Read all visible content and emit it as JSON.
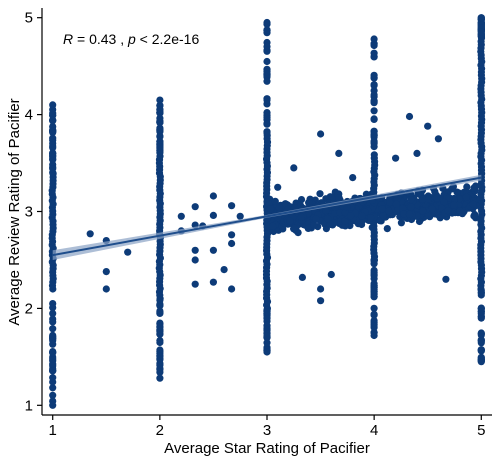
{
  "chart_data": {
    "type": "scatter",
    "title": "",
    "xlabel": "Average Star Rating of Pacifier",
    "ylabel": "Average Review Rating of Pacifier",
    "xlim": [
      0.9,
      5.1
    ],
    "ylim": [
      0.9,
      5.1
    ],
    "xticks": [
      "1",
      "2",
      "3",
      "4",
      "5"
    ],
    "yticks": [
      "1",
      "2",
      "3",
      "4",
      "5"
    ],
    "annotation": {
      "r_symbol": "R",
      "r_text": " = 0.43 , ",
      "p_symbol": "p",
      "p_text": " < 2.2e-16"
    },
    "grid": false,
    "legend": "none",
    "point_color": "#0d3b78",
    "regression_line": {
      "intercept": 2.35,
      "slope": 0.2,
      "x_range": [
        1,
        5
      ]
    },
    "columns": [
      {
        "x": 1.0,
        "y_min": 1.0,
        "y_max": 4.1,
        "core": [
          2.2,
          3.4
        ]
      },
      {
        "x": 2.0,
        "y_min": 1.28,
        "y_max": 4.15,
        "core": [
          2.1,
          3.6
        ]
      },
      {
        "x": 3.0,
        "y_min": 1.55,
        "y_max": 4.95,
        "core": [
          2.0,
          3.8
        ]
      },
      {
        "x": 4.0,
        "y_min": 1.72,
        "y_max": 4.78,
        "core": [
          2.5,
          3.6
        ]
      },
      {
        "x": 5.0,
        "y_min": 1.45,
        "y_max": 5.0,
        "core": [
          2.2,
          4.8
        ]
      }
    ],
    "scatter_band": {
      "x_range": [
        3.0,
        4.95
      ],
      "y_center_at_start": 2.95,
      "y_center_at_end": 3.1,
      "spread": 0.25
    },
    "extra_points": [
      [
        1.35,
        2.77
      ],
      [
        1.5,
        2.7
      ],
      [
        1.5,
        2.38
      ],
      [
        1.5,
        2.2
      ],
      [
        1.7,
        2.58
      ],
      [
        2.5,
        3.16
      ],
      [
        2.5,
        2.96
      ],
      [
        2.5,
        2.6
      ],
      [
        2.5,
        2.27
      ],
      [
        2.33,
        3.05
      ],
      [
        2.33,
        2.86
      ],
      [
        2.33,
        2.6
      ],
      [
        2.33,
        2.5
      ],
      [
        2.33,
        2.25
      ],
      [
        2.67,
        3.06
      ],
      [
        2.67,
        2.76
      ],
      [
        2.67,
        2.67
      ],
      [
        2.67,
        2.2
      ],
      [
        2.2,
        2.95
      ],
      [
        2.2,
        2.8
      ],
      [
        2.4,
        2.85
      ],
      [
        2.6,
        2.4
      ],
      [
        2.75,
        2.95
      ],
      [
        3.5,
        3.8
      ],
      [
        3.5,
        2.2
      ],
      [
        3.5,
        2.08
      ],
      [
        3.67,
        3.6
      ],
      [
        3.6,
        2.35
      ],
      [
        3.33,
        2.32
      ],
      [
        4.67,
        2.3
      ],
      [
        4.33,
        3.98
      ],
      [
        4.5,
        3.88
      ],
      [
        4.6,
        3.75
      ],
      [
        4.2,
        3.55
      ],
      [
        4.4,
        3.6
      ],
      [
        3.25,
        3.45
      ],
      [
        3.8,
        3.35
      ],
      [
        3.1,
        3.25
      ]
    ]
  }
}
